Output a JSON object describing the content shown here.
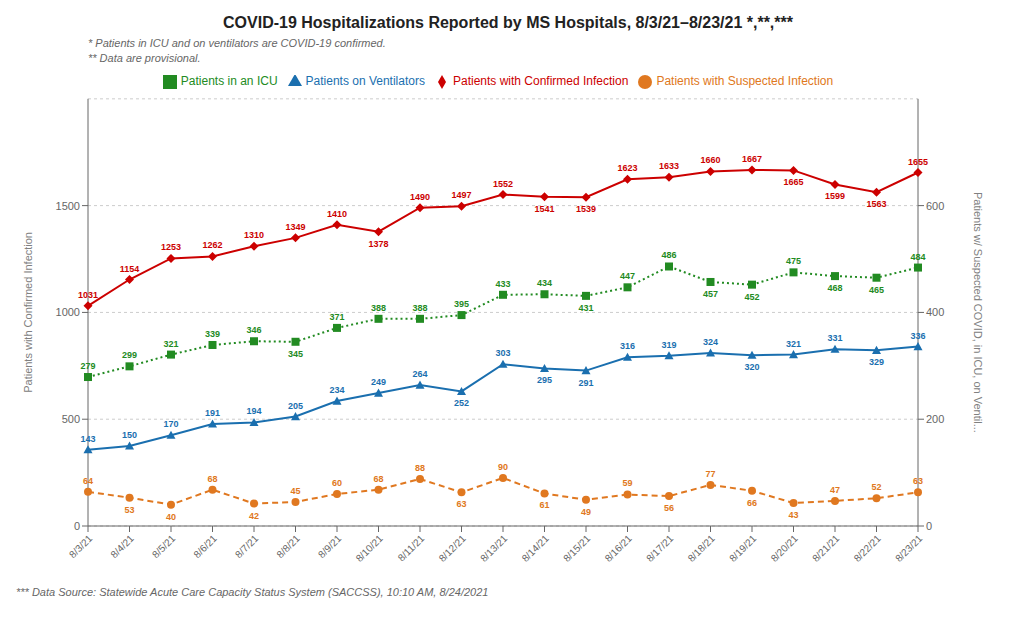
{
  "chart_data": {
    "type": "line",
    "title": "COVID-19 Hospitalizations Reported by MS Hospitals, 8/3/21–8/23/21 *,**,***",
    "subtitles": [
      "* Patients in ICU and on ventilators are COVID-19 confirmed.",
      "** Data are provisional."
    ],
    "footnote": "*** Data Source: Statewide Acute Care Capacity Status System (SACCSS), 10:10 AM, 8/24/2021",
    "categories": [
      "8/3/21",
      "8/4/21",
      "8/5/21",
      "8/6/21",
      "8/7/21",
      "8/8/21",
      "8/9/21",
      "8/10/21",
      "8/11/21",
      "8/12/21",
      "8/13/21",
      "8/14/21",
      "8/15/21",
      "8/16/21",
      "8/17/21",
      "8/18/21",
      "8/19/21",
      "8/20/21",
      "8/21/21",
      "8/22/21",
      "8/23/21"
    ],
    "series": [
      {
        "name": "Patients with Confirmed Infection",
        "color": "#cc0000",
        "marker": "diamond",
        "line_style": "solid",
        "axis": "y",
        "values": [
          1031,
          1154,
          1253,
          1262,
          1310,
          1349,
          1410,
          1378,
          1490,
          1497,
          1552,
          1541,
          1539,
          1623,
          1633,
          1660,
          1667,
          1665,
          1599,
          1563,
          1655
        ]
      },
      {
        "name": "Patients with Suspected Infection",
        "color": "#e07820",
        "marker": "circle",
        "line_style": "dashed",
        "axis": "y2",
        "values": [
          64,
          53,
          40,
          68,
          42,
          45,
          60,
          68,
          88,
          63,
          90,
          61,
          49,
          59,
          56,
          77,
          66,
          43,
          47,
          52,
          63
        ]
      },
      {
        "name": "Patients in an ICU",
        "color": "#228B22",
        "marker": "square",
        "line_style": "dotted",
        "axis": "y2",
        "values": [
          279,
          299,
          321,
          339,
          346,
          345,
          371,
          388,
          388,
          395,
          433,
          434,
          431,
          447,
          486,
          457,
          452,
          475,
          468,
          465,
          484
        ]
      },
      {
        "name": "Patients on Ventilators",
        "color": "#1a6faf",
        "marker": "triangle",
        "line_style": "solid",
        "axis": "y2",
        "values": [
          143,
          150,
          170,
          191,
          194,
          205,
          234,
          249,
          264,
          252,
          303,
          295,
          291,
          316,
          319,
          324,
          320,
          321,
          331,
          329,
          336
        ]
      }
    ],
    "ylabel": "Patients with Confirmed Infection",
    "y2label": "Patients w/ Suspected COVID, in ICU, on Ventil...",
    "ylim": [
      0,
      2000
    ],
    "yticks": [
      0,
      500,
      1000,
      1500
    ],
    "y2lim": [
      0,
      800
    ],
    "y2ticks": [
      0,
      200,
      400,
      600
    ],
    "grid": true,
    "legend": "top",
    "data_labels": true
  }
}
